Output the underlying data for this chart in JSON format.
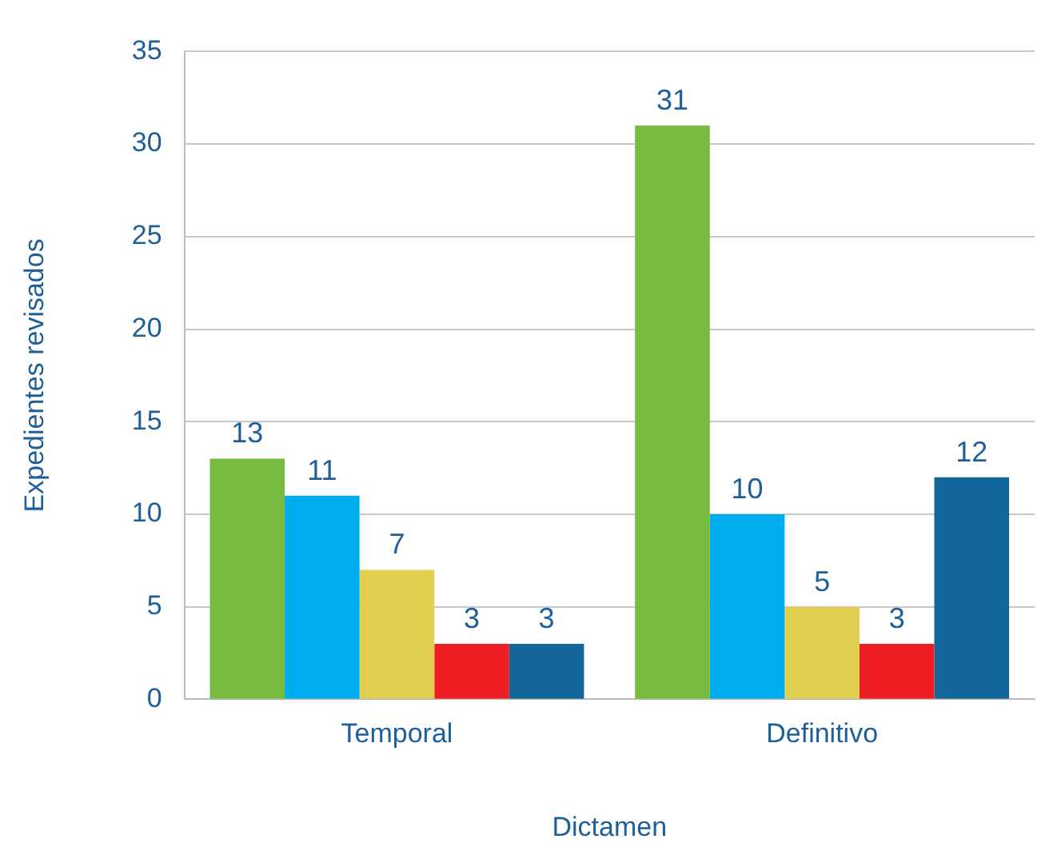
{
  "chart_data": {
    "type": "bar",
    "xlabel": "Dictamen",
    "ylabel": "Expedientes revisados",
    "categories": [
      "Temporal",
      "Definitivo"
    ],
    "series": [
      {
        "color": "#77bb41",
        "values": [
          13,
          31
        ]
      },
      {
        "color": "#00adef",
        "values": [
          11,
          10
        ]
      },
      {
        "color": "#e2cf4f",
        "values": [
          7,
          5
        ]
      },
      {
        "color": "#ee1d23",
        "values": [
          3,
          3
        ]
      },
      {
        "color": "#136699",
        "values": [
          3,
          12
        ]
      }
    ],
    "ylim": [
      0,
      35
    ],
    "yticks": [
      0,
      5,
      10,
      15,
      20,
      25,
      30,
      35
    ],
    "grid": "y",
    "legend": false,
    "data_labels": true
  }
}
